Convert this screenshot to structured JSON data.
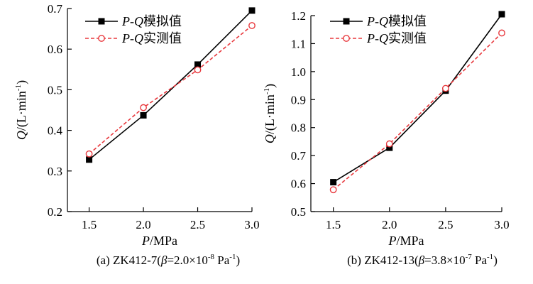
{
  "chart_data": [
    {
      "type": "line",
      "caption": {
        "prefix": "(a) ZK412-7(",
        "beta_symbol": "β",
        "beta_value": "=2.0×10",
        "beta_exp": "-8",
        "unit": " Pa",
        "unit_exp": "-1",
        "suffix": ")"
      },
      "xlabel": {
        "symbol": "P",
        "unit": "/MPa"
      },
      "ylabel": {
        "symbol": "Q",
        "unit": "/(L·min",
        "unit_exp": "-1",
        "close": ")"
      },
      "xlim": [
        1.3,
        3.0
      ],
      "ylim": [
        0.2,
        0.7
      ],
      "xticks": [
        "1.5",
        "2.0",
        "2.5",
        "3.0"
      ],
      "yticks": [
        "0.2",
        "0.3",
        "0.4",
        "0.5",
        "0.6",
        "0.7"
      ],
      "legend_position": "top-left",
      "x": [
        1.5,
        2.0,
        2.5,
        3.0
      ],
      "series": [
        {
          "legend_prefix": "P-Q",
          "legend_suffix": "模拟值",
          "color": "#000000",
          "marker": "square-filled",
          "dash": false,
          "values": [
            0.328,
            0.437,
            0.562,
            0.695
          ]
        },
        {
          "legend_prefix": "P-Q",
          "legend_suffix": "实测值",
          "color": "#e8383d",
          "marker": "circle-open",
          "dash": true,
          "values": [
            0.342,
            0.456,
            0.549,
            0.658
          ]
        }
      ]
    },
    {
      "type": "line",
      "caption": {
        "prefix": "(b) ZK412-13(",
        "beta_symbol": "β",
        "beta_value": "=3.8×10",
        "beta_exp": "-7",
        "unit": " Pa",
        "unit_exp": "-1",
        "suffix": ")"
      },
      "xlabel": {
        "symbol": "P",
        "unit": "/MPa"
      },
      "ylabel": {
        "symbol": "Q",
        "unit": "/(L·min",
        "unit_exp": "-1",
        "close": ")"
      },
      "xlim": [
        1.3,
        3.0
      ],
      "ylim": [
        0.5,
        1.2
      ],
      "xticks": [
        "1.5",
        "2.0",
        "2.5",
        "3.0"
      ],
      "yticks": [
        "0.5",
        "0.6",
        "0.7",
        "0.8",
        "0.9",
        "1.0",
        "1.1",
        "1.2"
      ],
      "legend_position": "top-left",
      "x": [
        1.5,
        2.0,
        2.5,
        3.0
      ],
      "series": [
        {
          "legend_prefix": "P-Q",
          "legend_suffix": "模拟值",
          "color": "#000000",
          "marker": "square-filled",
          "dash": false,
          "values": [
            0.605,
            0.728,
            0.932,
            1.205
          ]
        },
        {
          "legend_prefix": "P-Q",
          "legend_suffix": "实测值",
          "color": "#e8383d",
          "marker": "circle-open",
          "dash": true,
          "values": [
            0.578,
            0.742,
            0.94,
            1.138
          ]
        }
      ]
    }
  ]
}
